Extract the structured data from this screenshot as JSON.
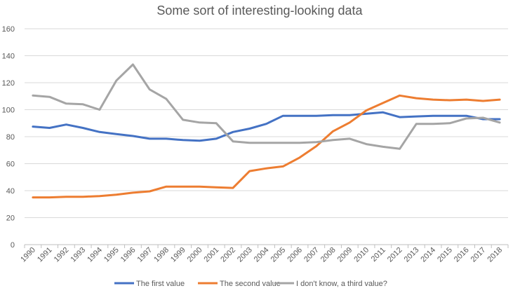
{
  "chart_data": {
    "type": "line",
    "title": "Some sort of interesting-looking data",
    "xlabel": "",
    "ylabel": "",
    "ylim": [
      0,
      160
    ],
    "yticks": [
      0,
      20,
      40,
      60,
      80,
      100,
      120,
      140,
      160
    ],
    "grid": true,
    "legend_position": "bottom",
    "categories": [
      "1990",
      "1991",
      "1992",
      "1993",
      "1994",
      "1995",
      "1996",
      "1997",
      "1998",
      "1999",
      "2000",
      "2001",
      "2002",
      "2003",
      "2004",
      "2005",
      "2006",
      "2007",
      "2008",
      "2009",
      "2010",
      "2011",
      "2012",
      "2013",
      "2014",
      "2015",
      "2016",
      "2017",
      "2018"
    ],
    "series": [
      {
        "name": "The first value",
        "color": "#4472C4",
        "values": [
          87.5,
          86.5,
          89,
          86.5,
          83.5,
          82,
          80.5,
          78.5,
          78.5,
          77.5,
          77,
          78.5,
          83.5,
          86,
          89.5,
          95.5,
          95.5,
          95.5,
          96,
          96,
          97,
          98,
          94.5,
          95,
          95.5,
          95.5,
          95.5,
          93,
          93
        ]
      },
      {
        "name": "The second value",
        "color": "#ED7D31",
        "values": [
          35,
          35,
          35.5,
          35.5,
          36,
          37,
          38.5,
          39.5,
          43,
          43,
          43,
          42.5,
          42,
          54.5,
          56.5,
          58,
          64.5,
          73,
          84,
          90.5,
          99.5,
          105,
          110.5,
          108.5,
          107.5,
          107,
          107.5,
          106.5,
          107.5
        ]
      },
      {
        "name": "I don't know, a third value?",
        "color": "#A5A5A5",
        "values": [
          110.5,
          109.5,
          104.5,
          104,
          100,
          121.5,
          133.5,
          115,
          108,
          92.5,
          90.5,
          90,
          76.5,
          75.5,
          75.5,
          75.5,
          75.5,
          76,
          77.5,
          78.5,
          74.5,
          72.5,
          71,
          89.5,
          89.5,
          90,
          93.5,
          94,
          90.5
        ]
      }
    ]
  }
}
